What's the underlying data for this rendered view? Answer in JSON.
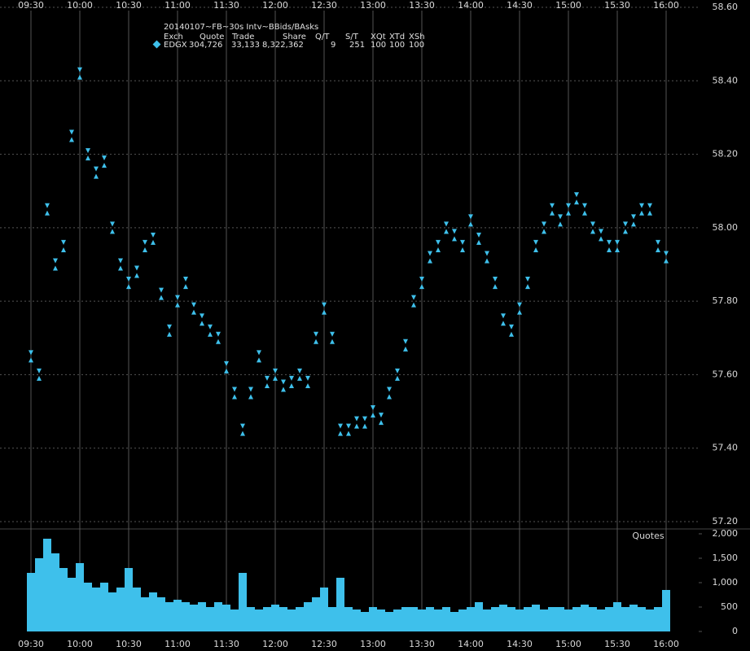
{
  "chart_data": [
    {
      "type": "scatter",
      "title": "20140107~FB~30s Intv~BBids/BAsks",
      "legend_columns": [
        "Exch",
        "Quote",
        "Trade",
        "Share",
        "Q/T",
        "S/T",
        "XQt",
        "XTd",
        "XSh"
      ],
      "x": [
        570,
        575,
        580,
        585,
        590,
        595,
        600,
        605,
        610,
        615,
        620,
        625,
        630,
        635,
        640,
        645,
        650,
        655,
        660,
        665,
        670,
        675,
        680,
        685,
        690,
        695,
        700,
        705,
        710,
        715,
        720,
        725,
        730,
        735,
        740,
        745,
        750,
        755,
        760,
        765,
        770,
        775,
        780,
        785,
        790,
        795,
        800,
        805,
        810,
        815,
        820,
        825,
        830,
        835,
        840,
        845,
        850,
        855,
        860,
        865,
        870,
        875,
        880,
        885,
        890,
        895,
        900,
        905,
        910,
        915,
        920,
        925,
        930,
        935,
        940,
        945,
        950,
        955,
        960
      ],
      "series": [
        {
          "name": "EDGX",
          "color": "#3ec0eb",
          "stats": [
            "304,726",
            "33,133",
            "8,322,362",
            "9",
            "251",
            "100",
            "100",
            "100"
          ],
          "bids": [
            57.64,
            57.59,
            58.04,
            57.89,
            57.94,
            58.24,
            58.41,
            58.19,
            58.14,
            58.17,
            57.99,
            57.89,
            57.84,
            57.87,
            57.94,
            57.96,
            57.81,
            57.71,
            57.79,
            57.84,
            57.77,
            57.74,
            57.71,
            57.69,
            57.61,
            57.54,
            57.44,
            57.54,
            57.64,
            57.57,
            57.59,
            57.56,
            57.57,
            57.59,
            57.57,
            57.69,
            57.77,
            57.69,
            57.44,
            57.44,
            57.46,
            57.46,
            57.49,
            57.47,
            57.54,
            57.59,
            57.67,
            57.79,
            57.84,
            57.91,
            57.94,
            57.99,
            57.97,
            57.94,
            58.01,
            57.96,
            57.91,
            57.84,
            57.74,
            57.71,
            57.77,
            57.84,
            57.94,
            57.99,
            58.04,
            58.01,
            58.04,
            58.07,
            58.04,
            57.99,
            57.97,
            57.94,
            57.94,
            57.99,
            58.01,
            58.04,
            58.04,
            57.94,
            57.91
          ],
          "asks": [
            57.66,
            57.61,
            58.06,
            57.91,
            57.96,
            58.26,
            58.43,
            58.21,
            58.16,
            58.19,
            58.01,
            57.91,
            57.86,
            57.89,
            57.96,
            57.98,
            57.83,
            57.73,
            57.81,
            57.86,
            57.79,
            57.76,
            57.73,
            57.71,
            57.63,
            57.56,
            57.46,
            57.56,
            57.66,
            57.59,
            57.61,
            57.58,
            57.59,
            57.61,
            57.59,
            57.71,
            57.79,
            57.71,
            57.46,
            57.46,
            57.48,
            57.48,
            57.51,
            57.49,
            57.56,
            57.61,
            57.69,
            57.81,
            57.86,
            57.93,
            57.96,
            58.01,
            57.99,
            57.96,
            58.03,
            57.98,
            57.93,
            57.86,
            57.76,
            57.73,
            57.79,
            57.86,
            57.96,
            58.01,
            58.06,
            58.03,
            58.06,
            58.09,
            58.06,
            58.01,
            57.99,
            57.96,
            57.96,
            58.01,
            58.03,
            58.06,
            58.06,
            57.96,
            57.93
          ]
        }
      ],
      "xlim": [
        566,
        980
      ],
      "xticks": [
        {
          "value": 570,
          "label": "09:30"
        },
        {
          "value": 600,
          "label": "10:00"
        },
        {
          "value": 630,
          "label": "10:30"
        },
        {
          "value": 660,
          "label": "11:00"
        },
        {
          "value": 690,
          "label": "11:30"
        },
        {
          "value": 720,
          "label": "12:00"
        },
        {
          "value": 750,
          "label": "12:30"
        },
        {
          "value": 780,
          "label": "13:00"
        },
        {
          "value": 810,
          "label": "13:30"
        },
        {
          "value": 840,
          "label": "14:00"
        },
        {
          "value": 870,
          "label": "14:30"
        },
        {
          "value": 900,
          "label": "15:00"
        },
        {
          "value": 930,
          "label": "15:30"
        },
        {
          "value": 960,
          "label": "16:00"
        }
      ],
      "ylim": [
        57.18,
        58.62
      ],
      "yticks": [
        {
          "value": 57.2,
          "label": "57.20"
        },
        {
          "value": 57.4,
          "label": "57.40"
        },
        {
          "value": 57.6,
          "label": "57.60"
        },
        {
          "value": 57.8,
          "label": "57.80"
        },
        {
          "value": 58.0,
          "label": "58.00"
        },
        {
          "value": 58.2,
          "label": "58.20"
        },
        {
          "value": 58.4,
          "label": "58.40"
        },
        {
          "value": 58.6,
          "label": "58.60"
        }
      ],
      "grid": true
    },
    {
      "type": "bar",
      "title": "Quotes",
      "color": "#3ec0eb",
      "x": [
        570,
        575,
        580,
        585,
        590,
        595,
        600,
        605,
        610,
        615,
        620,
        625,
        630,
        635,
        640,
        645,
        650,
        655,
        660,
        665,
        670,
        675,
        680,
        685,
        690,
        695,
        700,
        705,
        710,
        715,
        720,
        725,
        730,
        735,
        740,
        745,
        750,
        755,
        760,
        765,
        770,
        775,
        780,
        785,
        790,
        795,
        800,
        805,
        810,
        815,
        820,
        825,
        830,
        835,
        840,
        845,
        850,
        855,
        860,
        865,
        870,
        875,
        880,
        885,
        890,
        895,
        900,
        905,
        910,
        915,
        920,
        925,
        930,
        935,
        940,
        945,
        950,
        955,
        960
      ],
      "values": [
        1200,
        1500,
        1900,
        1600,
        1300,
        1100,
        1400,
        1000,
        900,
        1000,
        800,
        900,
        1300,
        900,
        700,
        800,
        700,
        600,
        650,
        600,
        550,
        600,
        500,
        600,
        550,
        450,
        1200,
        500,
        450,
        500,
        550,
        500,
        450,
        500,
        600,
        700,
        900,
        500,
        1100,
        500,
        450,
        400,
        500,
        450,
        400,
        450,
        500,
        500,
        450,
        500,
        450,
        500,
        400,
        450,
        500,
        600,
        450,
        500,
        550,
        500,
        450,
        500,
        550,
        450,
        500,
        500,
        450,
        500,
        550,
        500,
        450,
        500,
        600,
        500,
        550,
        500,
        450,
        500,
        850
      ],
      "xlim": [
        566,
        980
      ],
      "xticks": [
        {
          "value": 570,
          "label": "09:30"
        },
        {
          "value": 600,
          "label": "10:00"
        },
        {
          "value": 630,
          "label": "10:30"
        },
        {
          "value": 660,
          "label": "11:00"
        },
        {
          "value": 690,
          "label": "11:30"
        },
        {
          "value": 720,
          "label": "12:00"
        },
        {
          "value": 750,
          "label": "12:30"
        },
        {
          "value": 780,
          "label": "13:00"
        },
        {
          "value": 810,
          "label": "13:30"
        },
        {
          "value": 840,
          "label": "14:00"
        },
        {
          "value": 870,
          "label": "14:30"
        },
        {
          "value": 900,
          "label": "15:00"
        },
        {
          "value": 930,
          "label": "15:30"
        },
        {
          "value": 960,
          "label": "16:00"
        }
      ],
      "ylim": [
        0,
        2100
      ],
      "yticks": [
        0,
        500,
        {
          "value": 1000,
          "label": "1,000"
        },
        {
          "value": 1500,
          "label": "1,500"
        },
        {
          "value": 2000,
          "label": "2,000"
        }
      ]
    }
  ]
}
